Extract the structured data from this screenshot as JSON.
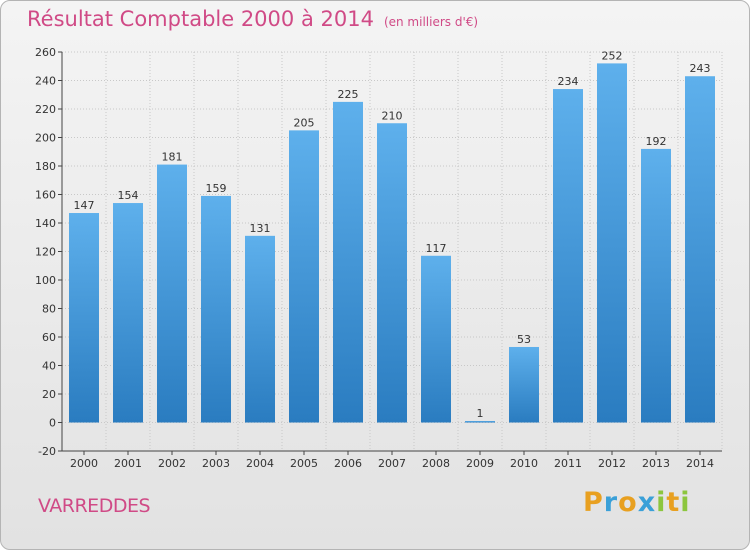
{
  "title": "Résultat Comptable 2000 à 2014",
  "unit_note": "(en milliers d'€)",
  "commune": "VARREDDES",
  "logo": {
    "letters": [
      "P",
      "r",
      "o",
      "x",
      "i",
      "t",
      "i"
    ],
    "colors": [
      "#e8a020",
      "#3aa0d8",
      "#e8a020",
      "#3aa0d8",
      "#8cc63e",
      "#e8a020",
      "#8cc63e"
    ]
  },
  "colors": {
    "title": "#d04a86",
    "bar": "#3a8fd6",
    "grid": "#c8c8c8",
    "axis": "#444444"
  },
  "chart_data": {
    "type": "bar",
    "categories": [
      "2000",
      "2001",
      "2002",
      "2003",
      "2004",
      "2005",
      "2006",
      "2007",
      "2008",
      "2009",
      "2010",
      "2011",
      "2012",
      "2013",
      "2014"
    ],
    "values": [
      147,
      154,
      181,
      159,
      131,
      205,
      225,
      210,
      117,
      1,
      53,
      234,
      252,
      192,
      243
    ],
    "ylim": [
      -20,
      260
    ],
    "yticks": [
      -20,
      0,
      20,
      40,
      60,
      80,
      100,
      120,
      140,
      160,
      180,
      200,
      220,
      240,
      260
    ],
    "grid": true,
    "title": "Résultat Comptable 2000 à 2014"
  }
}
